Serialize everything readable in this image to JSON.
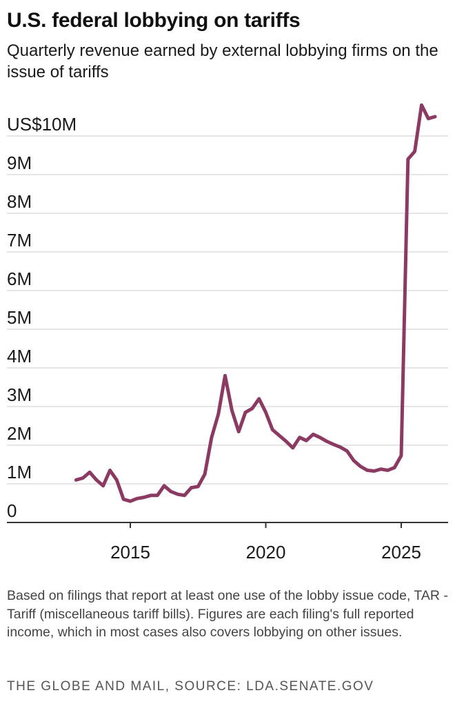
{
  "header": {
    "title": "U.S. federal lobbying on tariffs",
    "subtitle": "Quarterly revenue earned by external lobbying firms on the issue of tariffs"
  },
  "footer": {
    "note": "Based on filings that report at least one use of the lobby issue code, TAR - Tariff (miscellaneous tariff bills). Figures are each filing's full reported income, which in most cases also covers lobbying on other issues.",
    "source": "THE GLOBE AND MAIL, SOURCE: LDA.SENATE.GOV"
  },
  "colors": {
    "line": "#8b3a62",
    "grid": "#cccccc",
    "axis": "#333333",
    "text": "#1a1a1a"
  },
  "chart_data": {
    "type": "line",
    "title": "U.S. federal lobbying on tariffs",
    "subtitle": "Quarterly revenue earned by external lobbying firms on the issue of tariffs",
    "xlabel": "",
    "ylabel": "",
    "xlim": [
      2013,
      2026.5
    ],
    "ylim": [
      0,
      10
    ],
    "grid": true,
    "y_ticks": [
      {
        "value": 0,
        "label": "0"
      },
      {
        "value": 1,
        "label": "1M"
      },
      {
        "value": 2,
        "label": "2M"
      },
      {
        "value": 3,
        "label": "3M"
      },
      {
        "value": 4,
        "label": "4M"
      },
      {
        "value": 5,
        "label": "5M"
      },
      {
        "value": 6,
        "label": "6M"
      },
      {
        "value": 7,
        "label": "7M"
      },
      {
        "value": 8,
        "label": "8M"
      },
      {
        "value": 9,
        "label": "9M"
      },
      {
        "value": 10,
        "label": "US$10M"
      }
    ],
    "x_ticks": [
      {
        "value": 2015,
        "label": "2015"
      },
      {
        "value": 2020,
        "label": "2020"
      },
      {
        "value": 2025,
        "label": "2025"
      }
    ],
    "series": [
      {
        "points": [
          [
            2013.0,
            1.1
          ],
          [
            2013.25,
            1.15
          ],
          [
            2013.5,
            1.3
          ],
          [
            2013.75,
            1.1
          ],
          [
            2014.0,
            0.95
          ],
          [
            2014.25,
            1.35
          ],
          [
            2014.5,
            1.1
          ],
          [
            2014.75,
            0.6
          ],
          [
            2015.0,
            0.55
          ],
          [
            2015.25,
            0.62
          ],
          [
            2015.5,
            0.65
          ],
          [
            2015.75,
            0.7
          ],
          [
            2016.0,
            0.7
          ],
          [
            2016.25,
            0.95
          ],
          [
            2016.5,
            0.8
          ],
          [
            2016.75,
            0.73
          ],
          [
            2017.0,
            0.7
          ],
          [
            2017.25,
            0.9
          ],
          [
            2017.5,
            0.93
          ],
          [
            2017.75,
            1.25
          ],
          [
            2018.0,
            2.2
          ],
          [
            2018.25,
            2.8
          ],
          [
            2018.5,
            3.8
          ],
          [
            2018.75,
            2.9
          ],
          [
            2019.0,
            2.35
          ],
          [
            2019.25,
            2.85
          ],
          [
            2019.5,
            2.95
          ],
          [
            2019.75,
            3.2
          ],
          [
            2020.0,
            2.85
          ],
          [
            2020.25,
            2.4
          ],
          [
            2020.5,
            2.25
          ],
          [
            2020.75,
            2.1
          ],
          [
            2021.0,
            1.93
          ],
          [
            2021.25,
            2.2
          ],
          [
            2021.5,
            2.12
          ],
          [
            2021.75,
            2.28
          ],
          [
            2022.0,
            2.2
          ],
          [
            2022.25,
            2.1
          ],
          [
            2022.5,
            2.02
          ],
          [
            2022.75,
            1.95
          ],
          [
            2023.0,
            1.85
          ],
          [
            2023.25,
            1.6
          ],
          [
            2023.5,
            1.45
          ],
          [
            2023.75,
            1.35
          ],
          [
            2024.0,
            1.33
          ],
          [
            2024.25,
            1.38
          ],
          [
            2024.5,
            1.35
          ],
          [
            2024.75,
            1.42
          ],
          [
            2025.0,
            1.73
          ],
          [
            2025.25,
            9.4
          ],
          [
            2025.5,
            9.6
          ],
          [
            2025.75,
            10.8
          ],
          [
            2026.0,
            10.45
          ],
          [
            2026.25,
            10.5
          ]
        ]
      }
    ]
  }
}
